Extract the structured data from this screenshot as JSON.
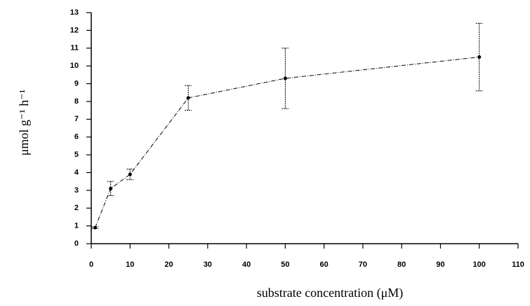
{
  "chart_data": {
    "type": "line",
    "ylabel": "μmol g⁻¹ h⁻¹",
    "xlabel": "substrate concentration (μM)",
    "x": [
      1,
      5,
      10,
      25,
      50,
      100
    ],
    "values": [
      0.9,
      3.1,
      3.9,
      8.2,
      9.3,
      10.5
    ],
    "errors": [
      0.05,
      0.4,
      0.3,
      0.7,
      1.7,
      1.9
    ],
    "color": "#000000",
    "xlim": [
      0,
      110
    ],
    "xticks": [
      0,
      10,
      20,
      30,
      40,
      50,
      60,
      70,
      80,
      90,
      100,
      110
    ],
    "ylim": [
      0,
      13
    ],
    "yticks": [
      0,
      1,
      2,
      3,
      4,
      5,
      6,
      7,
      8,
      9,
      10,
      11,
      12,
      13
    ]
  }
}
